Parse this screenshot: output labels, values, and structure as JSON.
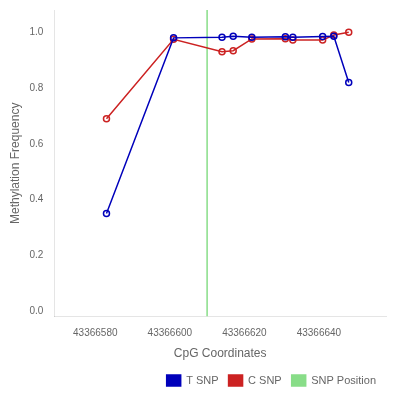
{
  "chart_data": {
    "type": "line",
    "xlabel": "CpG Coordinates",
    "ylabel": "Methylation Frequency",
    "x": [
      43366583,
      43366601,
      43366614,
      43366617,
      43366622,
      43366631,
      43366633,
      43366641,
      43366644,
      43366648
    ],
    "series": [
      {
        "name": "T SNP",
        "color": "#0000bb",
        "marker": "circle",
        "values": [
          0.35,
          0.98,
          0.982,
          0.986,
          0.982,
          0.984,
          0.982,
          0.985,
          0.986,
          0.82
        ]
      },
      {
        "name": "C SNP",
        "color": "#cc2222",
        "marker": "circle",
        "values": [
          0.69,
          0.975,
          0.93,
          0.934,
          0.976,
          0.977,
          0.972,
          0.972,
          0.99,
          1.0
        ]
      },
      {
        "name": "SNP Position",
        "color": "#88dd88",
        "type": "vline",
        "x": 43366610
      }
    ],
    "xlim": [
      43366569,
      43366658
    ],
    "xticks": [
      43366580,
      43366600,
      43366620,
      43366640
    ],
    "ylim": [
      -0.02,
      1.08
    ],
    "yticks": [
      {
        "value": 0.0,
        "label": "0.0"
      },
      {
        "value": 0.2,
        "label": "0.2"
      },
      {
        "value": 0.4,
        "label": "0.4"
      },
      {
        "value": 0.6,
        "label": "0.6"
      },
      {
        "value": 0.8,
        "label": "0.8"
      },
      {
        "value": 1.0,
        "label": "1.0"
      }
    ],
    "grid": false,
    "legend": "lower right"
  }
}
